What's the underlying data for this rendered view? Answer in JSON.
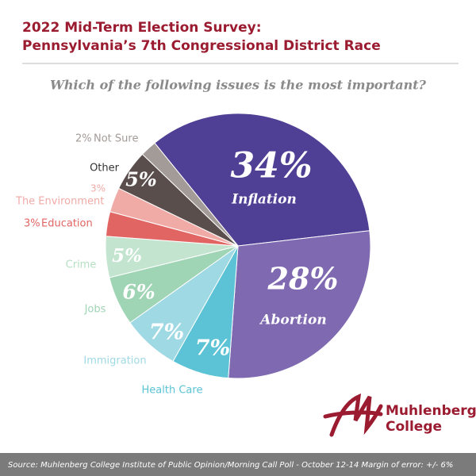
{
  "chart_data": {
    "type": "pie",
    "title": [
      "2022 Mid-Term Election Survey:",
      "Pennsylvania’s 7th Congressional District Race"
    ],
    "subtitle": "Which of the following issues is the most important?",
    "categories": [
      "Inflation",
      "Abortion",
      "Health Care",
      "Immigration",
      "Jobs",
      "Crime",
      "Education",
      "The Environment",
      "Other",
      "Not Sure"
    ],
    "values": [
      34,
      28,
      7,
      7,
      6,
      5,
      3,
      3,
      5,
      2
    ],
    "value_labels": [
      "34%",
      "28%",
      "7%",
      "7%",
      "6%",
      "5%",
      "3%",
      "3%",
      "5%",
      "2%"
    ],
    "colors": [
      "#4f4095",
      "#7f6ab1",
      "#5bc3d5",
      "#9fd9e4",
      "#9fd4b5",
      "#c3e5cf",
      "#e06563",
      "#f0aba7",
      "#5a4e4c",
      "#a39b98"
    ],
    "source": "Source: Muhlenberg College Institute of Public Opinion/Morning Call Poll - October 12-14 Margin of error: +/- 6%",
    "logo": [
      "Muhlenberg",
      "College"
    ]
  }
}
